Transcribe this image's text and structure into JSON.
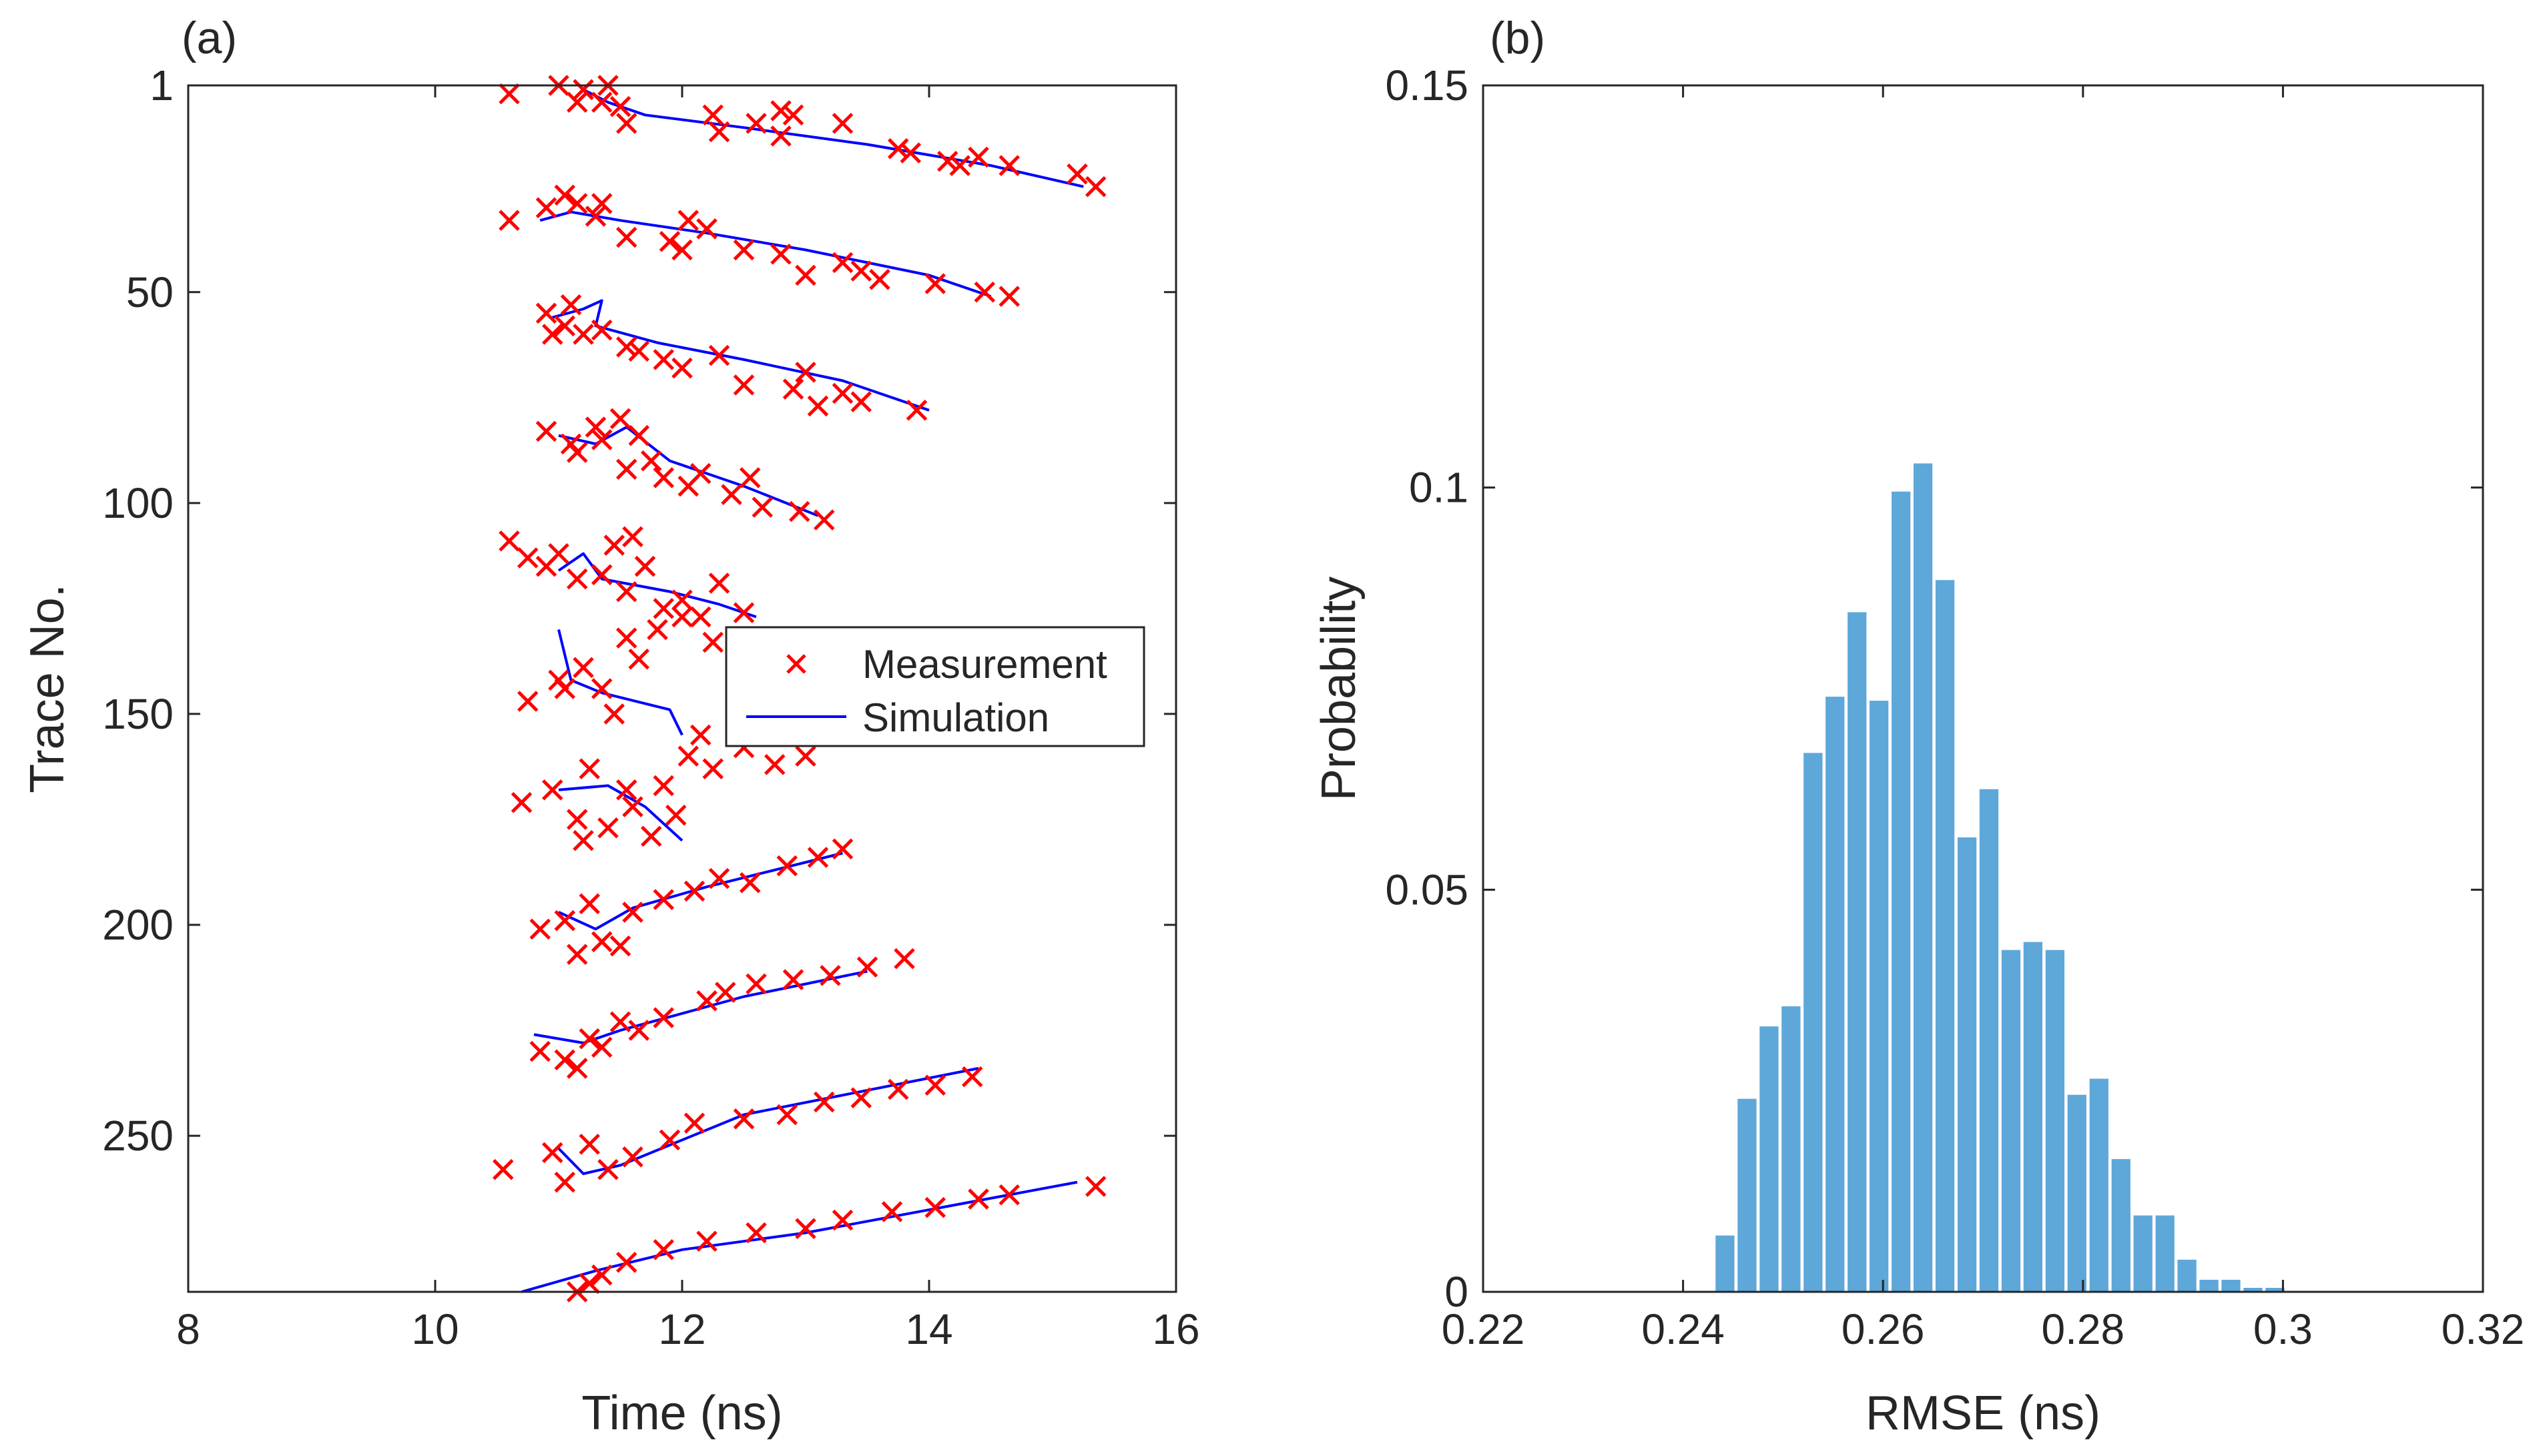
{
  "chart_data": [
    {
      "panel_label": "(a)",
      "type": "scatter",
      "xlabel": "Time (ns)",
      "ylabel": "Trace No.",
      "xlim": [
        8,
        16
      ],
      "ylim": [
        1,
        287
      ],
      "y_reversed": true,
      "xticks": [
        8,
        10,
        12,
        14,
        16
      ],
      "yticks": [
        1,
        50,
        100,
        150,
        200,
        250
      ],
      "grid": false,
      "legend": {
        "placement": "center-right",
        "entries": [
          "Measurement",
          "Simulation"
        ]
      },
      "series": [
        {
          "name": "Measurement",
          "marker": "x",
          "color": "#ff0000",
          "points": [
            [
              10.6,
              3
            ],
            [
              11.0,
              1
            ],
            [
              11.15,
              5
            ],
            [
              11.2,
              2
            ],
            [
              11.35,
              5
            ],
            [
              11.4,
              1
            ],
            [
              11.5,
              6
            ],
            [
              11.55,
              10
            ],
            [
              12.25,
              8
            ],
            [
              12.3,
              12
            ],
            [
              12.6,
              10
            ],
            [
              12.8,
              13
            ],
            [
              12.9,
              8
            ],
            [
              13.3,
              10
            ],
            [
              13.75,
              16
            ],
            [
              13.85,
              17
            ],
            [
              14.15,
              19
            ],
            [
              14.25,
              20
            ],
            [
              14.4,
              18
            ],
            [
              14.65,
              20
            ],
            [
              15.2,
              22
            ],
            [
              15.35,
              25
            ],
            [
              12.8,
              7
            ],
            [
              10.6,
              33
            ],
            [
              10.9,
              30
            ],
            [
              11.05,
              27
            ],
            [
              11.15,
              29
            ],
            [
              11.3,
              32
            ],
            [
              11.35,
              29
            ],
            [
              11.55,
              37
            ],
            [
              11.9,
              38
            ],
            [
              12.0,
              40
            ],
            [
              12.2,
              35
            ],
            [
              12.5,
              40
            ],
            [
              12.8,
              41
            ],
            [
              13.0,
              46
            ],
            [
              13.3,
              43
            ],
            [
              13.6,
              47
            ],
            [
              14.05,
              48
            ],
            [
              14.45,
              50
            ],
            [
              14.65,
              51
            ],
            [
              13.45,
              45
            ],
            [
              12.05,
              33
            ],
            [
              10.9,
              55
            ],
            [
              10.95,
              60
            ],
            [
              11.05,
              58
            ],
            [
              11.1,
              53
            ],
            [
              11.2,
              60
            ],
            [
              11.35,
              59
            ],
            [
              11.55,
              63
            ],
            [
              11.85,
              66
            ],
            [
              12.0,
              68
            ],
            [
              12.3,
              65
            ],
            [
              12.5,
              72
            ],
            [
              12.9,
              73
            ],
            [
              13.0,
              69
            ],
            [
              13.1,
              77
            ],
            [
              13.3,
              74
            ],
            [
              13.45,
              76
            ],
            [
              13.9,
              78
            ],
            [
              11.65,
              64
            ],
            [
              10.9,
              83
            ],
            [
              11.1,
              86
            ],
            [
              11.15,
              88
            ],
            [
              11.3,
              82
            ],
            [
              11.35,
              85
            ],
            [
              11.5,
              80
            ],
            [
              11.65,
              84
            ],
            [
              11.75,
              90
            ],
            [
              11.85,
              94
            ],
            [
              12.05,
              96
            ],
            [
              12.15,
              93
            ],
            [
              12.4,
              98
            ],
            [
              12.55,
              94
            ],
            [
              12.95,
              102
            ],
            [
              13.15,
              104
            ],
            [
              12.65,
              101
            ],
            [
              11.55,
              92
            ],
            [
              10.6,
              109
            ],
            [
              10.75,
              113
            ],
            [
              10.9,
              115
            ],
            [
              11.0,
              112
            ],
            [
              11.15,
              118
            ],
            [
              11.35,
              117
            ],
            [
              11.55,
              121
            ],
            [
              11.7,
              115
            ],
            [
              11.85,
              125
            ],
            [
              12.0,
              123
            ],
            [
              12.15,
              127
            ],
            [
              12.3,
              119
            ],
            [
              12.5,
              126
            ],
            [
              11.45,
              110
            ],
            [
              11.6,
              108
            ],
            [
              10.75,
              147
            ],
            [
              11.05,
              144
            ],
            [
              11.2,
              139
            ],
            [
              11.35,
              144
            ],
            [
              11.55,
              132
            ],
            [
              11.8,
              130
            ],
            [
              12.0,
              127
            ],
            [
              12.25,
              133
            ],
            [
              11.65,
              137
            ],
            [
              11.0,
              142
            ],
            [
              11.45,
              150
            ],
            [
              10.7,
              171
            ],
            [
              10.95,
              168
            ],
            [
              11.15,
              175
            ],
            [
              11.25,
              163
            ],
            [
              11.4,
              177
            ],
            [
              11.55,
              168
            ],
            [
              11.85,
              167
            ],
            [
              12.05,
              160
            ],
            [
              12.25,
              163
            ],
            [
              12.5,
              158
            ],
            [
              12.75,
              162
            ],
            [
              13.0,
              160
            ],
            [
              11.75,
              179
            ],
            [
              12.15,
              155
            ],
            [
              11.2,
              180
            ],
            [
              11.6,
              172
            ],
            [
              11.95,
              174
            ],
            [
              10.85,
              201
            ],
            [
              11.05,
              199
            ],
            [
              11.15,
              207
            ],
            [
              11.35,
              204
            ],
            [
              11.6,
              197
            ],
            [
              11.85,
              194
            ],
            [
              12.1,
              192
            ],
            [
              12.3,
              189
            ],
            [
              12.55,
              190
            ],
            [
              12.85,
              186
            ],
            [
              13.1,
              184
            ],
            [
              13.3,
              182
            ],
            [
              11.5,
              205
            ],
            [
              11.25,
              195
            ],
            [
              10.85,
              230
            ],
            [
              11.05,
              232
            ],
            [
              11.25,
              227
            ],
            [
              11.35,
              229
            ],
            [
              11.5,
              223
            ],
            [
              11.85,
              222
            ],
            [
              12.2,
              218
            ],
            [
              12.35,
              216
            ],
            [
              12.6,
              214
            ],
            [
              12.9,
              213
            ],
            [
              13.2,
              212
            ],
            [
              13.5,
              210
            ],
            [
              13.8,
              208
            ],
            [
              11.15,
              234
            ],
            [
              11.65,
              225
            ],
            [
              10.55,
              258
            ],
            [
              10.95,
              254
            ],
            [
              11.25,
              252
            ],
            [
              11.4,
              258
            ],
            [
              11.6,
              255
            ],
            [
              11.9,
              251
            ],
            [
              12.1,
              247
            ],
            [
              12.5,
              246
            ],
            [
              12.85,
              245
            ],
            [
              13.15,
              242
            ],
            [
              13.45,
              241
            ],
            [
              13.75,
              239
            ],
            [
              14.05,
              238
            ],
            [
              14.35,
              236
            ],
            [
              11.05,
              261
            ],
            [
              11.15,
              287
            ],
            [
              11.35,
              283
            ],
            [
              11.55,
              280
            ],
            [
              11.85,
              277
            ],
            [
              12.2,
              275
            ],
            [
              12.6,
              273
            ],
            [
              13.0,
              272
            ],
            [
              13.3,
              270
            ],
            [
              13.7,
              268
            ],
            [
              14.05,
              267
            ],
            [
              14.4,
              265
            ],
            [
              14.65,
              264
            ],
            [
              15.35,
              262
            ],
            [
              11.25,
              285
            ]
          ]
        },
        {
          "name": "Simulation",
          "color": "#0000ff",
          "lines": [
            [
              [
                11.2,
                2
              ],
              [
                11.4,
                5
              ],
              [
                11.7,
                8
              ],
              [
                12.5,
                11
              ],
              [
                13.5,
                15
              ],
              [
                14.5,
                20
              ],
              [
                15.25,
                25
              ]
            ],
            [
              [
                10.85,
                33
              ],
              [
                11.1,
                31
              ],
              [
                11.5,
                33
              ],
              [
                12.2,
                36
              ],
              [
                13.0,
                40
              ],
              [
                14.0,
                46
              ],
              [
                14.5,
                51
              ]
            ],
            [
              [
                10.95,
                56
              ],
              [
                11.2,
                54
              ],
              [
                11.35,
                52
              ],
              [
                11.3,
                58
              ],
              [
                11.8,
                62
              ],
              [
                12.5,
                66
              ],
              [
                13.3,
                71
              ],
              [
                14.0,
                78
              ]
            ],
            [
              [
                11.0,
                84
              ],
              [
                11.3,
                86
              ],
              [
                11.55,
                82
              ],
              [
                11.9,
                90
              ],
              [
                12.5,
                96
              ],
              [
                13.1,
                103
              ]
            ],
            [
              [
                11.0,
                116
              ],
              [
                11.2,
                112
              ],
              [
                11.35,
                118
              ],
              [
                11.9,
                121
              ],
              [
                12.3,
                124
              ],
              [
                12.6,
                127
              ]
            ],
            [
              [
                11.0,
                130
              ],
              [
                11.1,
                142
              ],
              [
                11.35,
                145
              ],
              [
                11.9,
                149
              ],
              [
                12.0,
                155
              ]
            ],
            [
              [
                11.0,
                168
              ],
              [
                11.4,
                167
              ],
              [
                11.7,
                172
              ],
              [
                12.0,
                180
              ]
            ],
            [
              [
                11.0,
                197
              ],
              [
                11.3,
                201
              ],
              [
                11.6,
                196
              ],
              [
                12.2,
                191
              ],
              [
                13.3,
                183
              ]
            ],
            [
              [
                10.8,
                226
              ],
              [
                11.2,
                228
              ],
              [
                11.5,
                225
              ],
              [
                12.5,
                217
              ],
              [
                13.5,
                211
              ]
            ],
            [
              [
                11.0,
                253
              ],
              [
                11.2,
                259
              ],
              [
                11.5,
                257
              ],
              [
                12.5,
                245
              ],
              [
                14.4,
                234
              ]
            ],
            [
              [
                10.7,
                287
              ],
              [
                11.3,
                282
              ],
              [
                12.0,
                277
              ],
              [
                13.0,
                273
              ],
              [
                15.2,
                261
              ]
            ]
          ]
        }
      ]
    },
    {
      "panel_label": "(b)",
      "type": "bar",
      "xlabel": "RMSE (ns)",
      "ylabel": "Probability",
      "xlim": [
        0.22,
        0.32
      ],
      "ylim": [
        0,
        0.15
      ],
      "xticks": [
        "0.22",
        "0.24",
        "0.26",
        "0.28",
        "0.3",
        "0.32"
      ],
      "yticks": [
        "0",
        "0.05",
        "0.1",
        "0.15"
      ],
      "grid": false,
      "bar_color": "#5ea7d9",
      "bin_width": 0.0022,
      "bin_centers": [
        0.2442,
        0.2464,
        0.2486,
        0.2508,
        0.253,
        0.2552,
        0.2574,
        0.2596,
        0.2618,
        0.264,
        0.2662,
        0.2684,
        0.2706,
        0.2728,
        0.275,
        0.2772,
        0.2794,
        0.2816,
        0.2838,
        0.286,
        0.2882,
        0.2904,
        0.2926,
        0.2948,
        0.297,
        0.2992
      ],
      "values": [
        0.007,
        0.024,
        0.033,
        0.0355,
        0.067,
        0.074,
        0.0845,
        0.0735,
        0.0995,
        0.103,
        0.0885,
        0.0565,
        0.0625,
        0.0425,
        0.0435,
        0.0425,
        0.0245,
        0.0265,
        0.0165,
        0.0095,
        0.0095,
        0.004,
        0.0015,
        0.0015,
        0.0005,
        0.0005
      ]
    }
  ]
}
